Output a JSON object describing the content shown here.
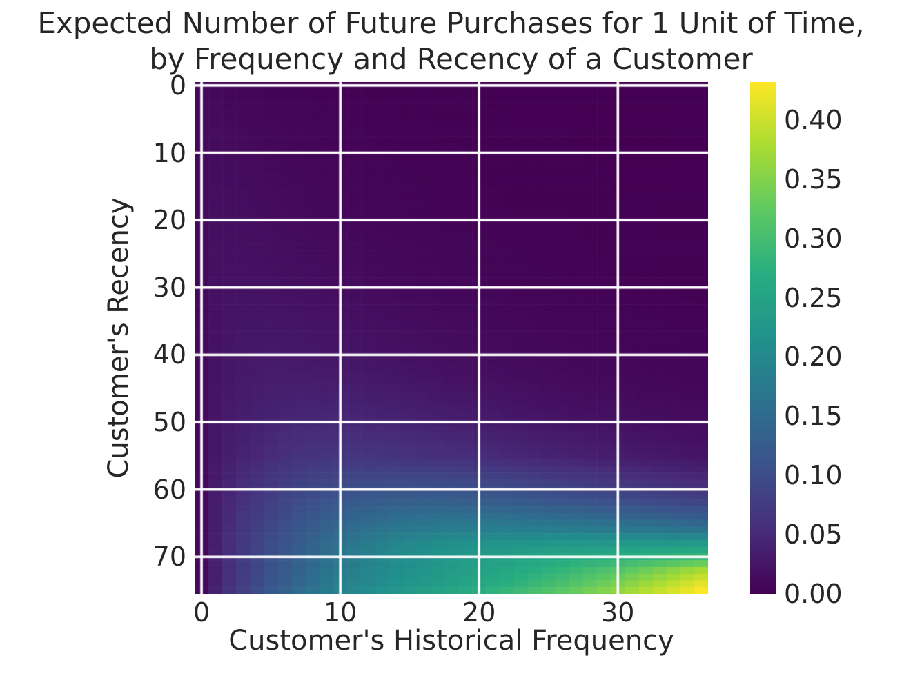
{
  "figure": {
    "background_color": "#ffffff",
    "text_color": "#262626",
    "gridline_color": "#ffffff"
  },
  "title": {
    "line1": "Expected Number of Future Purchases for 1 Unit of Time,",
    "line2": "by Frequency and Recency of a Customer"
  },
  "axes": {
    "xlabel": "Customer's Historical Frequency",
    "ylabel": "Customer's Recency"
  },
  "chart_data": {
    "type": "heatmap",
    "title": "Expected Number of Future Purchases for 1 Unit of Time, by Frequency and Recency of a Customer",
    "xlabel": "Customer's Historical Frequency",
    "ylabel": "Customer's Recency",
    "x_range": [
      0,
      36
    ],
    "y_range": [
      0,
      75
    ],
    "y_axis_inverted": true,
    "grid": true,
    "x_ticks": [
      0,
      10,
      20,
      30
    ],
    "x_tick_labels": [
      "0",
      "10",
      "20",
      "30"
    ],
    "y_ticks": [
      0,
      10,
      20,
      30,
      40,
      50,
      60,
      70
    ],
    "y_tick_labels": [
      "0",
      "10",
      "20",
      "30",
      "40",
      "50",
      "60",
      "70"
    ],
    "colormap": "viridis",
    "colormap_stops": [
      {
        "t": 0.0,
        "color": "#440154"
      },
      {
        "t": 0.125,
        "color": "#472d7b"
      },
      {
        "t": 0.25,
        "color": "#3b528b"
      },
      {
        "t": 0.375,
        "color": "#2c728e"
      },
      {
        "t": 0.5,
        "color": "#21918c"
      },
      {
        "t": 0.625,
        "color": "#27ad81"
      },
      {
        "t": 0.75,
        "color": "#5ec962"
      },
      {
        "t": 0.875,
        "color": "#aadc32"
      },
      {
        "t": 1.0,
        "color": "#fde725"
      }
    ],
    "colorbar": {
      "vmin": 0.0,
      "vmax": 0.432,
      "ticks": [
        0.0,
        0.05,
        0.1,
        0.15,
        0.2,
        0.25,
        0.3,
        0.35,
        0.4
      ],
      "tick_labels": [
        "0.00",
        "0.05",
        "0.10",
        "0.15",
        "0.20",
        "0.25",
        "0.30",
        "0.35",
        "0.40"
      ]
    },
    "grid_size": {
      "n_frequencies": 37,
      "n_recencies": 76
    },
    "value_grid": {
      "frequencies": [
        0,
        1,
        2,
        3,
        5,
        7,
        10,
        14,
        18,
        22,
        26,
        30,
        33,
        36
      ],
      "recencies": [
        0,
        10,
        20,
        30,
        40,
        45,
        50,
        55,
        58,
        60,
        62,
        64,
        66,
        68,
        70,
        72,
        74,
        75
      ],
      "values": [
        [
          0.01,
          0.009,
          0.007,
          0.005,
          0.004,
          0.003,
          0.002,
          0.001,
          0.001,
          0.0,
          0.0,
          0.0,
          0.0,
          0.0
        ],
        [
          0.01,
          0.014,
          0.013,
          0.012,
          0.009,
          0.007,
          0.005,
          0.003,
          0.002,
          0.001,
          0.001,
          0.0,
          0.0,
          0.0
        ],
        [
          0.01,
          0.017,
          0.017,
          0.016,
          0.014,
          0.011,
          0.008,
          0.005,
          0.003,
          0.002,
          0.002,
          0.001,
          0.001,
          0.001
        ],
        [
          0.01,
          0.019,
          0.021,
          0.021,
          0.02,
          0.018,
          0.014,
          0.01,
          0.007,
          0.005,
          0.003,
          0.002,
          0.002,
          0.001
        ],
        [
          0.01,
          0.021,
          0.025,
          0.027,
          0.029,
          0.028,
          0.025,
          0.02,
          0.015,
          0.011,
          0.008,
          0.006,
          0.005,
          0.004
        ],
        [
          0.01,
          0.023,
          0.028,
          0.031,
          0.035,
          0.036,
          0.034,
          0.029,
          0.023,
          0.018,
          0.013,
          0.01,
          0.008,
          0.007
        ],
        [
          0.01,
          0.025,
          0.031,
          0.036,
          0.043,
          0.047,
          0.048,
          0.044,
          0.037,
          0.03,
          0.024,
          0.019,
          0.016,
          0.013
        ],
        [
          0.01,
          0.027,
          0.035,
          0.042,
          0.052,
          0.062,
          0.066,
          0.062,
          0.056,
          0.048,
          0.04,
          0.033,
          0.028,
          0.024
        ],
        [
          0.01,
          0.03,
          0.041,
          0.051,
          0.066,
          0.078,
          0.088,
          0.09,
          0.086,
          0.078,
          0.068,
          0.058,
          0.051,
          0.045
        ],
        [
          0.01,
          0.031,
          0.044,
          0.056,
          0.074,
          0.089,
          0.104,
          0.11,
          0.108,
          0.1,
          0.09,
          0.078,
          0.07,
          0.062
        ],
        [
          0.01,
          0.033,
          0.047,
          0.06,
          0.081,
          0.099,
          0.119,
          0.131,
          0.132,
          0.127,
          0.118,
          0.107,
          0.098,
          0.09
        ],
        [
          0.01,
          0.034,
          0.05,
          0.065,
          0.088,
          0.108,
          0.133,
          0.152,
          0.158,
          0.156,
          0.149,
          0.139,
          0.131,
          0.122
        ],
        [
          0.01,
          0.035,
          0.053,
          0.068,
          0.094,
          0.117,
          0.147,
          0.172,
          0.183,
          0.186,
          0.183,
          0.176,
          0.17,
          0.163
        ],
        [
          0.01,
          0.036,
          0.055,
          0.071,
          0.1,
          0.124,
          0.16,
          0.195,
          0.213,
          0.222,
          0.227,
          0.229,
          0.23,
          0.231
        ],
        [
          0.01,
          0.037,
          0.057,
          0.074,
          0.105,
          0.132,
          0.17,
          0.205,
          0.228,
          0.245,
          0.26,
          0.272,
          0.281,
          0.29
        ],
        [
          0.01,
          0.037,
          0.058,
          0.076,
          0.108,
          0.137,
          0.177,
          0.21,
          0.236,
          0.258,
          0.283,
          0.315,
          0.345,
          0.375
        ],
        [
          0.01,
          0.038,
          0.06,
          0.079,
          0.113,
          0.144,
          0.184,
          0.218,
          0.245,
          0.272,
          0.305,
          0.345,
          0.38,
          0.415
        ],
        [
          0.01,
          0.039,
          0.062,
          0.082,
          0.118,
          0.15,
          0.19,
          0.225,
          0.255,
          0.285,
          0.32,
          0.36,
          0.395,
          0.43
        ]
      ]
    }
  }
}
